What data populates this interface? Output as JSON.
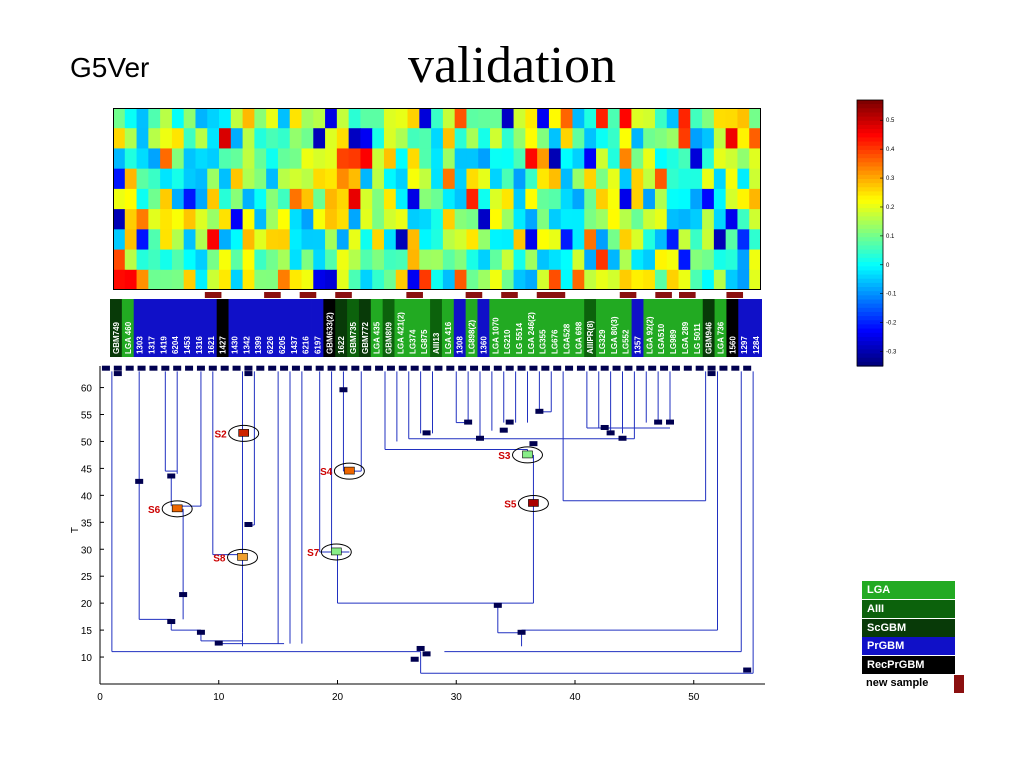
{
  "slide": {
    "title": "validation",
    "subtitle": "G5Ver"
  },
  "colors": {
    "LGA": "#22aa22",
    "AIII": "#0c620c",
    "ScGBM": "#083a08",
    "PrGBM": "#1010c8",
    "RecPrGBM": "#000000",
    "new_sample": "#8b1010",
    "tree_line": "#2030c0",
    "tree_node": "#000050"
  },
  "sample_labels": [
    "GBM749",
    "LGA 460",
    "1303",
    "1317",
    "1419",
    "6204",
    "1453",
    "1316",
    "1621",
    "1427",
    "1430",
    "1342",
    "1399",
    "6226",
    "6205",
    "1437",
    "6216",
    "6197",
    "GBM633(2)",
    "1622",
    "GBM735",
    "GBM772",
    "LGA 435",
    "GBM809",
    "LGA 421(2)",
    "LG374",
    "LG875",
    "AIII13",
    "LGA 416",
    "1308",
    "LG898(2)",
    "1360",
    "LGA 1070",
    "LG210",
    "LG 5514",
    "LGA 246(2)",
    "LG355",
    "LG676",
    "LGA528",
    "LGA 698",
    "AIIIPR(8)",
    "LG329",
    "LGA 80(3)",
    "LG552",
    "1357",
    "LGA 92(2)",
    "LGA510",
    "LG989",
    "LGA 289",
    "LG 5011",
    "GBM946",
    "LGA 736",
    "1560",
    "1297",
    "1284"
  ],
  "sample_classes": [
    "ScGBM",
    "LGA",
    "PrGBM",
    "PrGBM",
    "PrGBM",
    "PrGBM",
    "PrGBM",
    "PrGBM",
    "PrGBM",
    "RecPrGBM",
    "PrGBM",
    "PrGBM",
    "PrGBM",
    "PrGBM",
    "PrGBM",
    "PrGBM",
    "PrGBM",
    "PrGBM",
    "RecPrGBM",
    "ScGBM",
    "AIII",
    "ScGBM",
    "LGA",
    "AIII",
    "LGA",
    "LGA",
    "LGA",
    "AIII",
    "LGA",
    "PrGBM",
    "LGA",
    "PrGBM",
    "LGA",
    "LGA",
    "LGA",
    "LGA",
    "LGA",
    "LGA",
    "LGA",
    "LGA",
    "AIII",
    "LGA",
    "LGA",
    "LGA",
    "PrGBM",
    "LGA",
    "LGA",
    "LGA",
    "LGA",
    "LGA",
    "ScGBM",
    "LGA",
    "RecPrGBM",
    "PrGBM",
    "PrGBM"
  ],
  "new_sample_markers": [
    8,
    13,
    16,
    19,
    25,
    30,
    33,
    36,
    37,
    43,
    46,
    48,
    52
  ],
  "dendrogram": {
    "x_ticks": [
      "0",
      "10",
      "20",
      "30",
      "40",
      "50"
    ],
    "y_ticks": [
      "10",
      "15",
      "20",
      "25",
      "30",
      "35",
      "40",
      "45",
      "50",
      "55",
      "60"
    ],
    "y_label": "T",
    "x_range": [
      0,
      56
    ],
    "y_range": [
      5,
      64
    ],
    "states": [
      {
        "label": "S2",
        "t": 51.5,
        "x": 12.1,
        "color": "#cc2200"
      },
      {
        "label": "S4",
        "t": 44.5,
        "x": 21.0,
        "color": "#ee6600"
      },
      {
        "label": "S6",
        "t": 37.5,
        "x": 6.5,
        "color": "#ee6600"
      },
      {
        "label": "S8",
        "t": 28.5,
        "x": 12.0,
        "color": "#f0a030"
      },
      {
        "label": "S7",
        "t": 29.5,
        "x": 19.9,
        "color": "#88ee88"
      },
      {
        "label": "S3",
        "t": 47.5,
        "x": 36.0,
        "color": "#88ee88"
      },
      {
        "label": "S5",
        "t": 38.5,
        "x": 36.5,
        "color": "#aa0000"
      }
    ]
  },
  "colorbar": {
    "ticks": [
      "0.5",
      "0.4",
      "0.3",
      "0.2",
      "0.1",
      "0",
      "-0.1",
      "-0.2",
      "-0.3"
    ],
    "range": [
      -0.35,
      0.57
    ]
  },
  "legend": {
    "items": [
      {
        "label": "LGA",
        "color": "#22aa22"
      },
      {
        "label": "AIII",
        "color": "#0c620c"
      },
      {
        "label": "ScGBM",
        "color": "#083a08"
      },
      {
        "label": "PrGBM",
        "color": "#1010c8"
      },
      {
        "label": "RecPrGBM",
        "color": "#000000"
      }
    ],
    "new_sample_label": "new sample"
  }
}
